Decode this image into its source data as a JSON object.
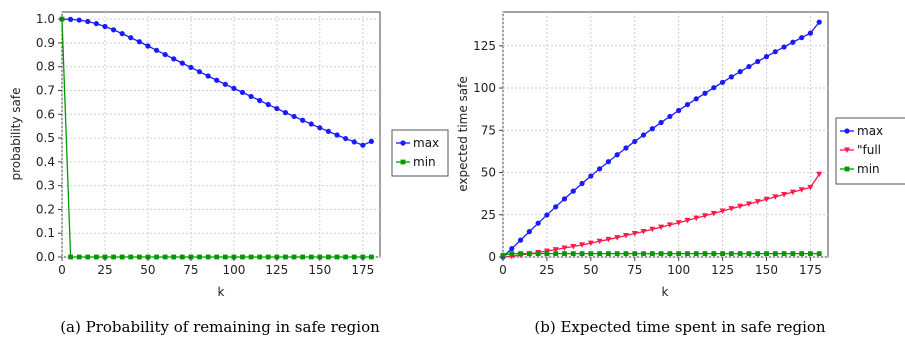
{
  "chart_data": [
    {
      "type": "line",
      "caption": "(a) Probability of remaining in safe region",
      "xlabel": "k",
      "ylabel": "probability safe",
      "xlim": [
        0,
        185
      ],
      "ylim": [
        0,
        1.03
      ],
      "xticks": [
        "0",
        "25",
        "50",
        "75",
        "100",
        "125",
        "150",
        "175"
      ],
      "yticks": [
        "0.0",
        "0.1",
        "0.2",
        "0.3",
        "0.4",
        "0.5",
        "0.6",
        "0.7",
        "0.8",
        "0.9",
        "1.0"
      ],
      "grid": true,
      "legend_position": "right",
      "x": [
        0,
        5,
        10,
        15,
        20,
        25,
        30,
        35,
        40,
        45,
        50,
        55,
        60,
        65,
        70,
        75,
        80,
        85,
        90,
        95,
        100,
        105,
        110,
        115,
        120,
        125,
        130,
        135,
        140,
        145,
        150,
        155,
        160,
        165,
        170,
        175,
        180
      ],
      "series": [
        {
          "name": "max",
          "color": "#1a1aff",
          "marker": "circle",
          "values": [
            1.0,
            0.999,
            0.996,
            0.99,
            0.981,
            0.969,
            0.955,
            0.939,
            0.922,
            0.905,
            0.887,
            0.869,
            0.851,
            0.833,
            0.815,
            0.797,
            0.779,
            0.761,
            0.743,
            0.726,
            0.709,
            0.692,
            0.675,
            0.658,
            0.641,
            0.624,
            0.607,
            0.591,
            0.575,
            0.559,
            0.543,
            0.528,
            0.513,
            0.498,
            0.484,
            0.47,
            0.486
          ]
        },
        {
          "name": "min",
          "color": "#009900",
          "marker": "square",
          "values": [
            1.0,
            0.0,
            0.0,
            0.0,
            0.0,
            0.0,
            0.0,
            0.0,
            0.0,
            0.0,
            0.0,
            0.0,
            0.0,
            0.0,
            0.0,
            0.0,
            0.0,
            0.0,
            0.0,
            0.0,
            0.0,
            0.0,
            0.0,
            0.0,
            0.0,
            0.0,
            0.0,
            0.0,
            0.0,
            0.0,
            0.0,
            0.0,
            0.0,
            0.0,
            0.0,
            0.0,
            0.0
          ]
        }
      ]
    },
    {
      "type": "line",
      "caption": "(b) Expected time spent in safe region",
      "xlabel": "k",
      "ylabel": "expected time safe",
      "xlim": [
        0,
        185
      ],
      "ylim": [
        0,
        145
      ],
      "xticks": [
        "0",
        "25",
        "50",
        "75",
        "100",
        "125",
        "150",
        "175"
      ],
      "yticks": [
        "0",
        "25",
        "50",
        "75",
        "100",
        "125"
      ],
      "grid": true,
      "legend_position": "right",
      "x": [
        0,
        5,
        10,
        15,
        20,
        25,
        30,
        35,
        40,
        45,
        50,
        55,
        60,
        65,
        70,
        75,
        80,
        85,
        90,
        95,
        100,
        105,
        110,
        115,
        120,
        125,
        130,
        135,
        140,
        145,
        150,
        155,
        160,
        165,
        170,
        175,
        180
      ],
      "series": [
        {
          "name": "max",
          "color": "#1a1aff",
          "marker": "circle",
          "values": [
            0,
            5,
            10,
            15,
            20,
            24.9,
            29.7,
            34.4,
            39.0,
            43.5,
            47.9,
            52.2,
            56.4,
            60.5,
            64.5,
            68.4,
            72.2,
            75.9,
            79.6,
            83.2,
            86.7,
            90.2,
            93.6,
            96.9,
            100.2,
            103.4,
            106.6,
            109.7,
            112.7,
            115.7,
            118.6,
            121.5,
            124.3,
            127.1,
            129.8,
            132.5,
            139.0
          ]
        },
        {
          "name": "\"full",
          "color": "#ff1a4a",
          "marker": "triangle-down",
          "values": [
            0,
            0.4,
            1.2,
            1.9,
            2.7,
            3.5,
            4.4,
            5.3,
            6.2,
            7.2,
            8.2,
            9.3,
            10.4,
            11.5,
            12.7,
            13.9,
            15.1,
            16.4,
            17.7,
            19.0,
            20.3,
            21.7,
            23.0,
            24.4,
            25.8,
            27.2,
            28.6,
            30.0,
            31.4,
            32.8,
            34.2,
            35.6,
            37.0,
            38.4,
            39.8,
            41.2,
            49.0
          ]
        },
        {
          "name": "min",
          "color": "#009900",
          "marker": "square",
          "values": [
            1,
            2,
            2,
            2,
            2,
            2,
            2,
            2,
            2,
            2,
            2,
            2,
            2,
            2,
            2,
            2,
            2,
            2,
            2,
            2,
            2,
            2,
            2,
            2,
            2,
            2,
            2,
            2,
            2,
            2,
            2,
            2,
            2,
            2,
            2,
            2,
            2
          ]
        }
      ]
    }
  ]
}
